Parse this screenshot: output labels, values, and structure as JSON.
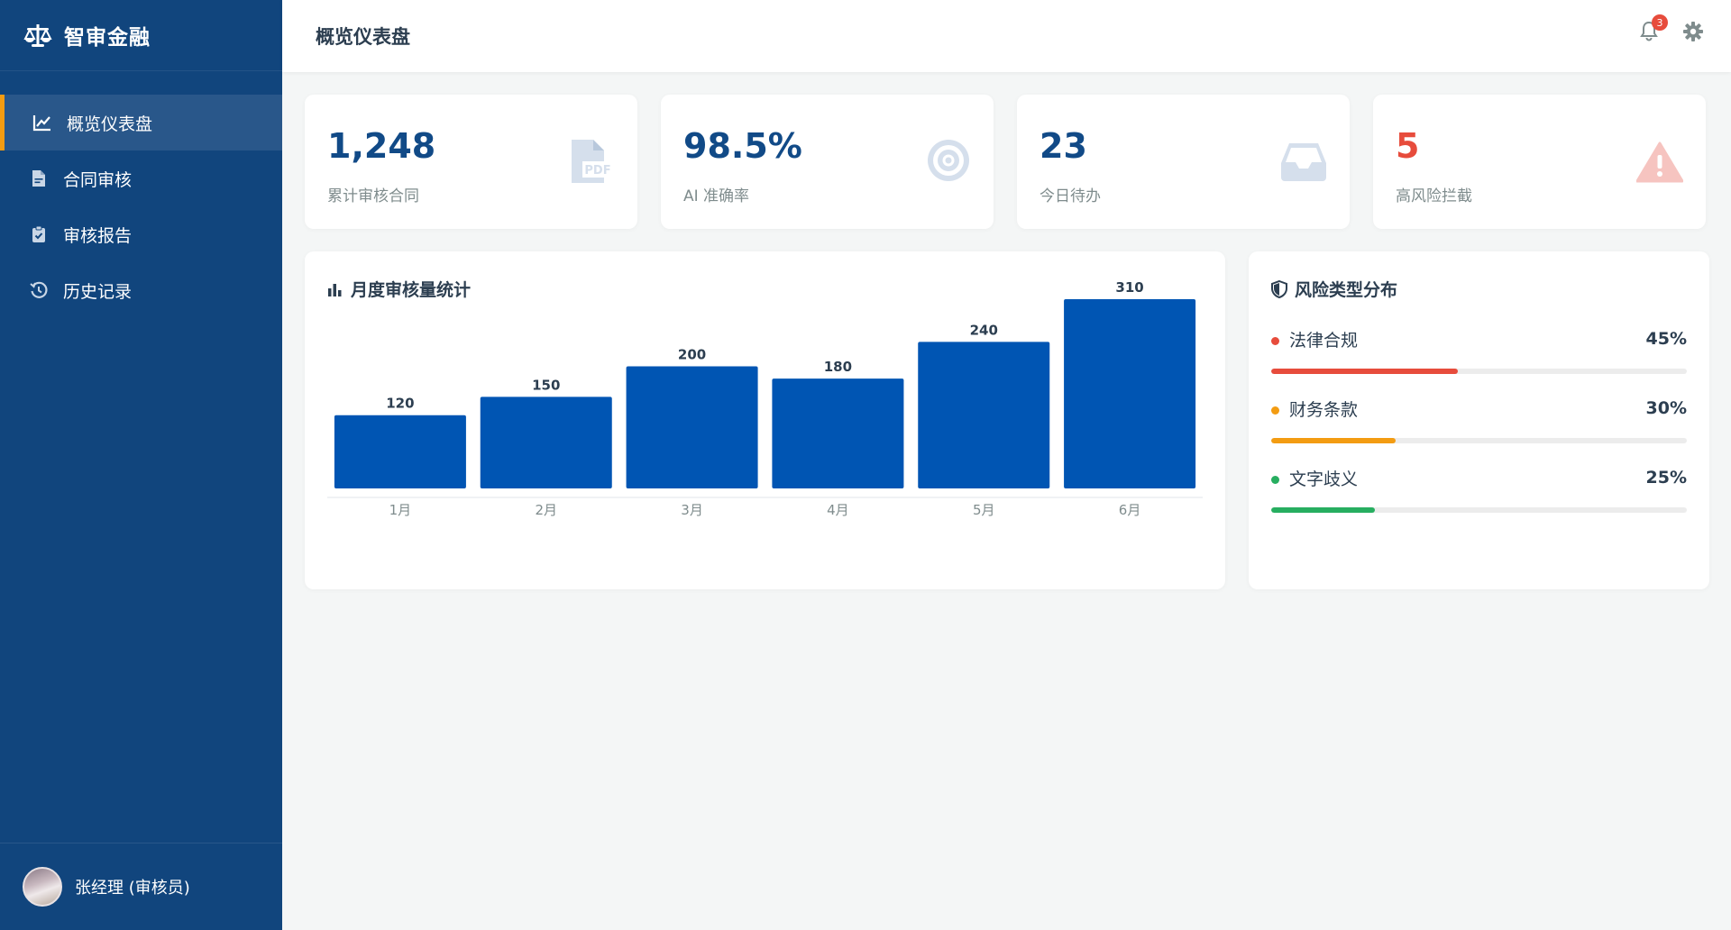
{
  "brand": {
    "name": "智审金融"
  },
  "sidebar": {
    "items": [
      {
        "label": "概览仪表盘",
        "icon": "chart-line-icon",
        "active": true
      },
      {
        "label": "合同审核",
        "icon": "file-pdf-icon",
        "active": false
      },
      {
        "label": "审核报告",
        "icon": "clipboard-check-icon",
        "active": false
      },
      {
        "label": "历史记录",
        "icon": "history-icon",
        "active": false
      }
    ]
  },
  "user": {
    "name": "张经理 (审核员)"
  },
  "header": {
    "title": "概览仪表盘",
    "notification_count": "3"
  },
  "stats": [
    {
      "value": "1,248",
      "label": "累计审核合同",
      "icon": "file-pdf-icon",
      "value_color": "#114a87"
    },
    {
      "value": "98.5%",
      "label": "AI 准确率",
      "icon": "target-icon",
      "value_color": "#114a87"
    },
    {
      "value": "23",
      "label": "今日待办",
      "icon": "inbox-icon",
      "value_color": "#114a87"
    },
    {
      "value": "5",
      "label": "高风险拦截",
      "icon": "warning-icon",
      "value_color": "#e74c3c"
    }
  ],
  "monthly": {
    "title": "月度审核量统计"
  },
  "chart_data": {
    "type": "bar",
    "title": "月度审核量统计",
    "categories": [
      "1月",
      "2月",
      "3月",
      "4月",
      "5月",
      "6月"
    ],
    "values": [
      120,
      150,
      200,
      180,
      240,
      310
    ],
    "ylim": [
      0,
      310
    ],
    "grid": false,
    "bar_color": "#0055b3"
  },
  "risk": {
    "title": "风险类型分布",
    "items": [
      {
        "name": "法律合规",
        "pct_label": "45%",
        "pct": 45,
        "color": "#e74c3c"
      },
      {
        "name": "财务条款",
        "pct_label": "30%",
        "pct": 30,
        "color": "#f39c12"
      },
      {
        "name": "文字歧义",
        "pct_label": "25%",
        "pct": 25,
        "color": "#27ae60"
      }
    ]
  }
}
